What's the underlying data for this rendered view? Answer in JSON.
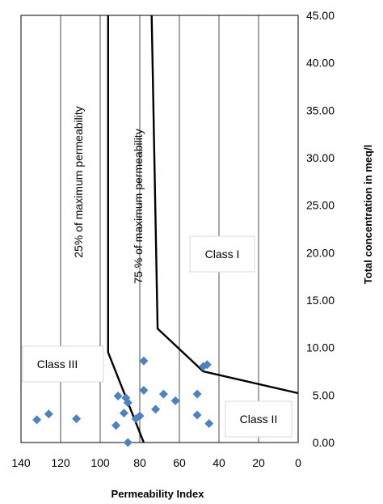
{
  "chart_data": {
    "type": "scatter",
    "xlabel": "Permeability Index",
    "ylabel": "Total concentration in meq/l",
    "xlim": [
      140,
      0
    ],
    "ylim": [
      0,
      45
    ],
    "x_reversed": true,
    "y_axis_side": "right",
    "grid": "vertical",
    "x_ticks": [
      "140",
      "120",
      "100",
      "80",
      "60",
      "40",
      "20",
      "0"
    ],
    "y_ticks": [
      "0.00",
      "5.00",
      "10.00",
      "15.00",
      "20.00",
      "25.00",
      "30.00",
      "35.00",
      "40.00",
      "45.00"
    ],
    "marker": "diamond",
    "marker_color": "#4f81bd",
    "points": [
      {
        "x": 132,
        "y": 2.4
      },
      {
        "x": 126,
        "y": 3.0
      },
      {
        "x": 112,
        "y": 2.5
      },
      {
        "x": 92,
        "y": 1.8
      },
      {
        "x": 91,
        "y": 4.9
      },
      {
        "x": 88,
        "y": 3.1
      },
      {
        "x": 87,
        "y": 4.7
      },
      {
        "x": 86,
        "y": 4.2
      },
      {
        "x": 86,
        "y": 0.0
      },
      {
        "x": 82,
        "y": 2.5
      },
      {
        "x": 80,
        "y": 2.8
      },
      {
        "x": 78,
        "y": 8.6
      },
      {
        "x": 78,
        "y": 5.5
      },
      {
        "x": 72,
        "y": 3.5
      },
      {
        "x": 68,
        "y": 5.1
      },
      {
        "x": 62,
        "y": 4.4
      },
      {
        "x": 51,
        "y": 5.1
      },
      {
        "x": 51,
        "y": 2.9
      },
      {
        "x": 48,
        "y": 8.0
      },
      {
        "x": 46,
        "y": 8.2
      },
      {
        "x": 45,
        "y": 2.0
      }
    ],
    "boundaries": [
      {
        "points": [
          [
            96,
            45
          ],
          [
            96,
            9.5
          ],
          [
            78,
            0
          ]
        ]
      },
      {
        "points": [
          [
            74,
            45
          ],
          [
            71,
            12
          ],
          [
            48,
            7.5
          ],
          [
            0,
            5.2
          ]
        ]
      }
    ],
    "zone_labels": {
      "left": "25% of maximum permeability",
      "right": "75 % of maximum permeability"
    },
    "class_labels": {
      "class1": "Class I",
      "class2": "Class II",
      "class3": "Class III"
    }
  }
}
